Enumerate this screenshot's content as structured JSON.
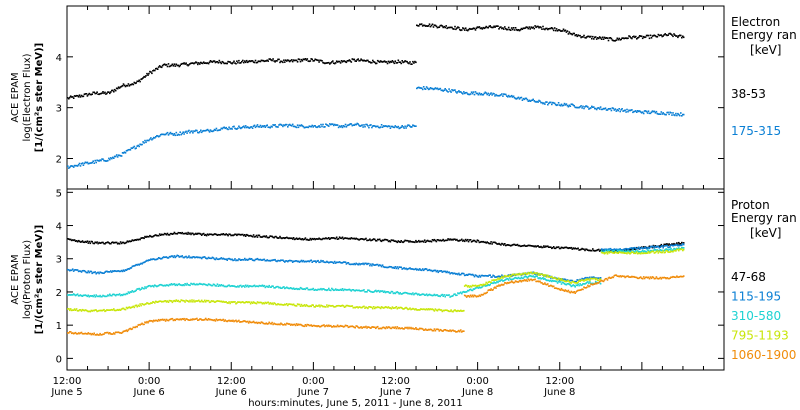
{
  "chart_data": [
    {
      "type": "scatter",
      "panel": "electron",
      "ylabel_lines": [
        "ACE EPAM",
        "log(Electron Flux)",
        "[1/(cm²s ster MeV)]"
      ],
      "yticks": [
        2,
        3,
        4
      ],
      "ylim": [
        1.4,
        5.0
      ],
      "legend_title_lines": [
        "Electron",
        "Energy ran"
      ],
      "legend_units": "[keV]",
      "series": [
        {
          "name": "38-53",
          "color": "#000000",
          "x": [
            0,
            2,
            4,
            6,
            8,
            10,
            12,
            14,
            16,
            18,
            20,
            22,
            24,
            26,
            28,
            30,
            32,
            34,
            36,
            38,
            40,
            42,
            44,
            46,
            48,
            50,
            52,
            54,
            56,
            58,
            60,
            62,
            64,
            66,
            68,
            70,
            72,
            74,
            76,
            78,
            80,
            82,
            84,
            86,
            88,
            90
          ],
          "y": [
            3.2,
            3.25,
            3.3,
            3.3,
            3.45,
            3.5,
            3.7,
            3.85,
            3.85,
            3.88,
            3.9,
            3.92,
            3.9,
            3.92,
            3.93,
            3.95,
            3.92,
            3.95,
            3.95,
            3.9,
            3.92,
            3.95,
            3.93,
            3.9,
            3.92,
            3.9,
            4.65,
            4.62,
            4.6,
            4.55,
            4.58,
            4.6,
            4.58,
            4.55,
            4.6,
            4.58,
            4.55,
            4.45,
            4.4,
            4.38,
            4.35,
            4.4,
            4.4,
            4.42,
            4.45,
            4.4
          ]
        },
        {
          "name": "175-315",
          "color": "#0a7fd4",
          "x": [
            0,
            2,
            4,
            6,
            8,
            10,
            12,
            14,
            16,
            18,
            20,
            22,
            24,
            26,
            28,
            30,
            32,
            34,
            36,
            38,
            40,
            42,
            44,
            46,
            48,
            50,
            52,
            54,
            56,
            58,
            60,
            62,
            64,
            66,
            68,
            70,
            72,
            74,
            76,
            78,
            80,
            82,
            84,
            86,
            88,
            90
          ],
          "y": [
            1.85,
            1.9,
            1.95,
            2.0,
            2.1,
            2.25,
            2.4,
            2.5,
            2.5,
            2.55,
            2.55,
            2.6,
            2.62,
            2.63,
            2.65,
            2.65,
            2.67,
            2.65,
            2.65,
            2.67,
            2.65,
            2.68,
            2.65,
            2.65,
            2.63,
            2.65,
            3.4,
            3.38,
            3.35,
            3.3,
            3.3,
            3.28,
            3.25,
            3.2,
            3.15,
            3.1,
            3.08,
            3.05,
            3.02,
            3.0,
            2.98,
            2.95,
            2.93,
            2.92,
            2.9,
            2.88
          ]
        }
      ]
    },
    {
      "type": "scatter",
      "panel": "proton",
      "ylabel_lines": [
        "ACE EPAM",
        "log(Proton Flux)",
        "[1/(cm²s ster MeV)]"
      ],
      "yticks": [
        0,
        1,
        2,
        3,
        4,
        5
      ],
      "ylim": [
        -0.35,
        5.1
      ],
      "legend_title_lines": [
        "Proton",
        "Energy ran"
      ],
      "legend_units": "[keV]",
      "series": [
        {
          "name": "47-68",
          "color": "#000000",
          "x": [
            0,
            4,
            8,
            12,
            16,
            20,
            24,
            28,
            32,
            36,
            40,
            44,
            48,
            52,
            56,
            60,
            64,
            68,
            72,
            76,
            80,
            84,
            88,
            90
          ],
          "y": [
            3.6,
            3.5,
            3.5,
            3.7,
            3.8,
            3.75,
            3.75,
            3.7,
            3.65,
            3.6,
            3.65,
            3.6,
            3.55,
            3.55,
            3.6,
            3.55,
            3.45,
            3.4,
            3.35,
            3.3,
            3.25,
            3.35,
            3.45,
            3.5
          ]
        },
        {
          "name": "115-195",
          "color": "#0a7fd4",
          "x": [
            0,
            4,
            8,
            12,
            16,
            20,
            24,
            28,
            32,
            36,
            40,
            44,
            48,
            52,
            56,
            60,
            64,
            68,
            72,
            74,
            76,
            80,
            84,
            88,
            90
          ],
          "y": [
            2.7,
            2.6,
            2.65,
            3.0,
            3.1,
            3.05,
            3.0,
            3.0,
            2.95,
            2.95,
            2.9,
            2.85,
            2.75,
            2.7,
            2.6,
            2.5,
            2.5,
            2.6,
            2.4,
            2.35,
            2.45,
            3.3,
            3.35,
            3.4,
            3.45
          ]
        },
        {
          "name": "310-580",
          "color": "#1ed2d2",
          "x": [
            0,
            4,
            8,
            12,
            16,
            20,
            24,
            28,
            32,
            36,
            40,
            44,
            48,
            52,
            56,
            60,
            64,
            68,
            72,
            74,
            76,
            80,
            84,
            88,
            90
          ],
          "y": [
            1.95,
            1.9,
            1.95,
            2.2,
            2.25,
            2.25,
            2.2,
            2.2,
            2.15,
            2.1,
            2.1,
            2.05,
            2.0,
            1.95,
            1.9,
            2.15,
            2.4,
            2.5,
            2.3,
            2.2,
            2.3,
            3.25,
            3.25,
            3.3,
            3.35
          ]
        },
        {
          "name": "795-1193",
          "color": "#c8e60a",
          "x": [
            0,
            4,
            8,
            12,
            16,
            20,
            24,
            28,
            32,
            36,
            40,
            44,
            48,
            52,
            56,
            60,
            64,
            68,
            72,
            74,
            76,
            80,
            84,
            88,
            90
          ],
          "y": [
            1.5,
            1.45,
            1.5,
            1.7,
            1.75,
            1.75,
            1.7,
            1.7,
            1.65,
            1.6,
            1.6,
            1.55,
            1.55,
            1.5,
            1.45,
            2.2,
            2.5,
            2.6,
            2.4,
            2.3,
            2.4,
            3.2,
            3.2,
            3.25,
            3.3
          ]
        },
        {
          "name": "1060-1900",
          "color": "#f08c0a",
          "x": [
            0,
            4,
            8,
            12,
            16,
            20,
            24,
            28,
            32,
            36,
            40,
            44,
            48,
            52,
            56,
            60,
            64,
            68,
            72,
            74,
            76,
            80,
            84,
            88,
            90
          ],
          "y": [
            0.8,
            0.75,
            0.8,
            1.15,
            1.2,
            1.2,
            1.15,
            1.1,
            1.05,
            1.0,
            1.0,
            0.95,
            0.95,
            0.9,
            0.85,
            1.9,
            2.3,
            2.4,
            2.1,
            2.0,
            2.2,
            2.5,
            2.45,
            2.45,
            2.5
          ]
        }
      ]
    }
  ],
  "xaxis": {
    "range": [
      0,
      96
    ],
    "tick_every": 12,
    "ticks": [
      {
        "x": 0,
        "time": "12:00",
        "date": "June 5"
      },
      {
        "x": 12,
        "time": "0:00",
        "date": "June 6"
      },
      {
        "x": 24,
        "time": "12:00",
        "date": "June 6"
      },
      {
        "x": 36,
        "time": "0:00",
        "date": "June 7"
      },
      {
        "x": 48,
        "time": "12:00",
        "date": "June 7"
      },
      {
        "x": 60,
        "time": "0:00",
        "date": "June 8"
      },
      {
        "x": 72,
        "time": "12:00",
        "date": "June 8"
      }
    ],
    "label": "hours:minutes,  June  5, 2011  -  June  8, 2011"
  }
}
